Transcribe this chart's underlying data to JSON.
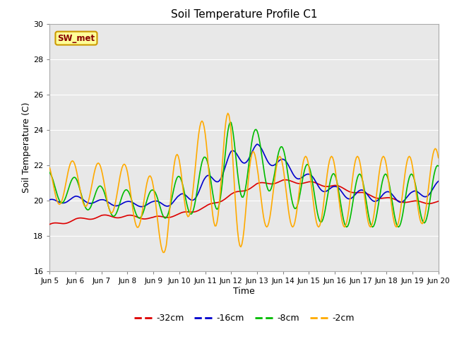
{
  "title": "Soil Temperature Profile C1",
  "xlabel": "Time",
  "ylabel": "Soil Temperature (C)",
  "ylim": [
    16,
    30
  ],
  "xlim": [
    0,
    360
  ],
  "bg_color": "#e8e8e8",
  "fig_color": "#ffffff",
  "annotation_text": "SW_met",
  "annotation_bg": "#ffff99",
  "annotation_border": "#cc9900",
  "annotation_text_color": "#880000",
  "legend_labels": [
    "-32cm",
    "-16cm",
    "-8cm",
    "-2cm"
  ],
  "legend_colors": [
    "#dd0000",
    "#0000cc",
    "#00bb00",
    "#ffaa00"
  ],
  "xtick_labels": [
    "Jun 5",
    "Jun 6",
    "Jun 7",
    "Jun 8",
    "Jun 9",
    "Jun 10",
    "Jun 11",
    "Jun 12",
    "Jun 13",
    "Jun 14",
    "Jun 15",
    "Jun 16",
    "Jun 17",
    "Jun 18",
    "Jun 19",
    "Jun 20"
  ],
  "xtick_positions": [
    0,
    24,
    48,
    72,
    96,
    120,
    144,
    168,
    192,
    216,
    240,
    264,
    288,
    312,
    336,
    360
  ],
  "ytick_positions": [
    16,
    18,
    20,
    22,
    24,
    26,
    28,
    30
  ]
}
